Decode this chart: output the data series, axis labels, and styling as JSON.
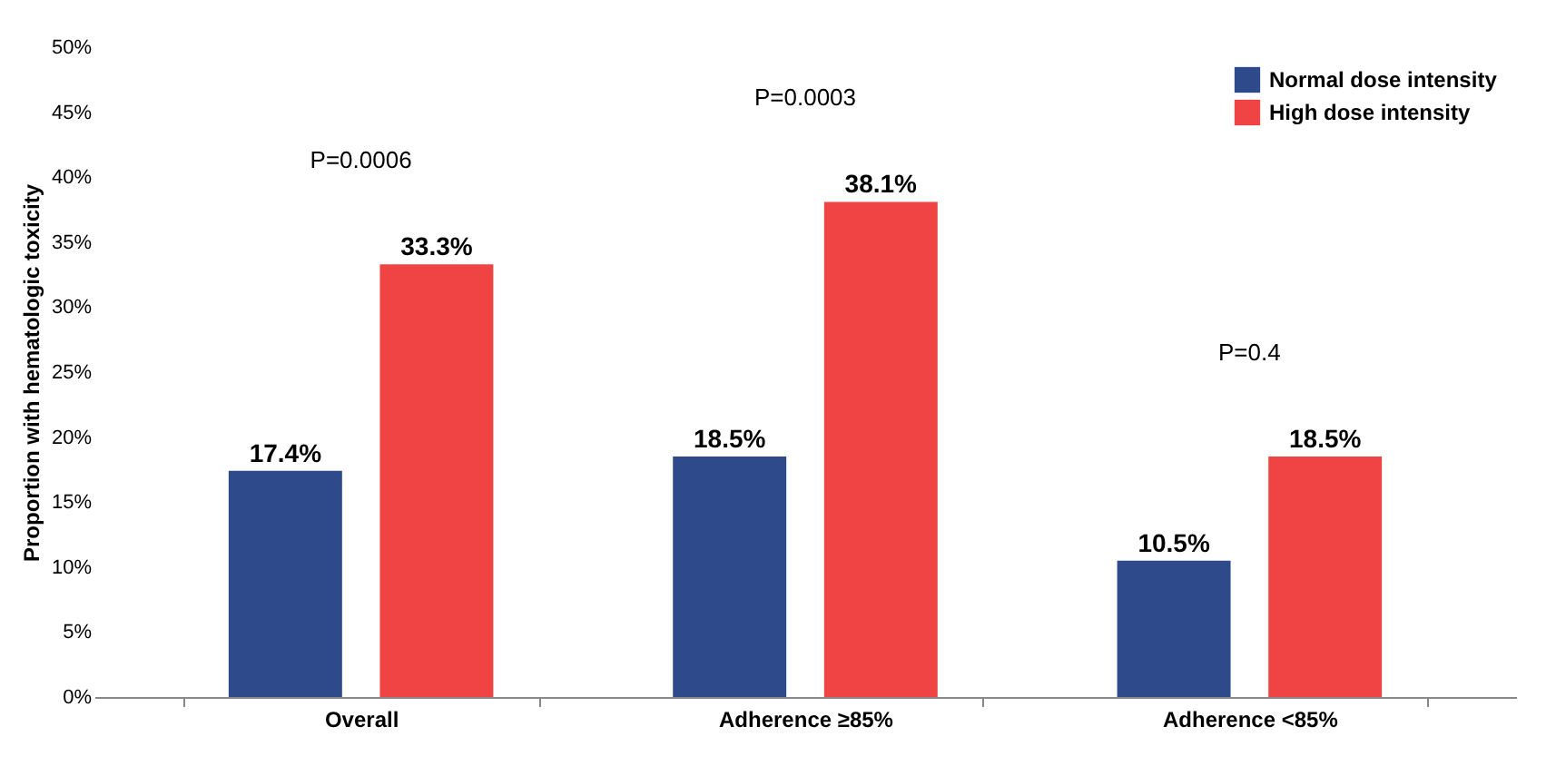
{
  "chart_data": {
    "type": "bar",
    "ylabel": "Proportion with hematologic toxicity",
    "categories": [
      "Overall",
      "Adherence ≥85%",
      "Adherence <85%"
    ],
    "series": [
      {
        "name": "Normal dose intensity",
        "color": "#2e4a8b",
        "values": [
          17.4,
          18.5,
          10.5
        ],
        "value_labels": [
          "17.4%",
          "18.5%",
          "10.5%"
        ]
      },
      {
        "name": "High dose intensity",
        "color": "#f04343",
        "values": [
          33.3,
          38.1,
          18.5
        ],
        "value_labels": [
          "33.3%",
          "38.1%",
          "18.5%"
        ]
      }
    ],
    "ylim": [
      0,
      50
    ],
    "yticks": [
      {
        "value": 0,
        "label": "0%"
      },
      {
        "value": 5,
        "label": "5%"
      },
      {
        "value": 10,
        "label": "10%"
      },
      {
        "value": 15,
        "label": "15%"
      },
      {
        "value": 20,
        "label": "20%"
      },
      {
        "value": 25,
        "label": "25%"
      },
      {
        "value": 30,
        "label": "30%"
      },
      {
        "value": 35,
        "label": "35%"
      },
      {
        "value": 40,
        "label": "40%"
      },
      {
        "value": 45,
        "label": "45%"
      },
      {
        "value": 50,
        "label": "50%"
      }
    ],
    "annotations": [
      "P=0.0006",
      "P=0.0003",
      "P=0.4"
    ],
    "legend": "top right",
    "grid": false
  }
}
